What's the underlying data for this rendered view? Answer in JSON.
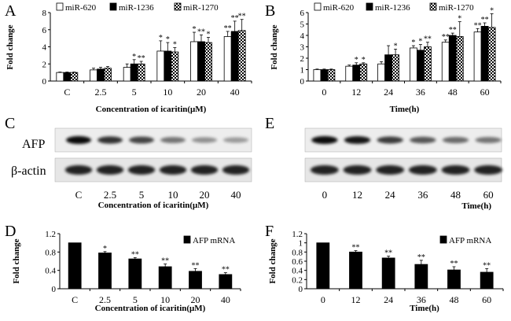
{
  "chart_data": [
    {
      "panel": "A",
      "type": "bar",
      "ylabel": "Fold change",
      "xlabel": "Concentration of icaritin(μM)",
      "categories": [
        "C",
        "2.5",
        "5",
        "10",
        "20",
        "40"
      ],
      "ylim": [
        0,
        8
      ],
      "yticks": [
        0,
        2,
        4,
        6,
        8
      ],
      "legend_position": "top-left",
      "series": [
        {
          "name": "miR-620",
          "pattern": "white",
          "values": [
            1.0,
            1.3,
            1.6,
            3.5,
            4.6,
            5.2
          ],
          "errors": [
            0.05,
            0.2,
            0.4,
            1.2,
            1.1,
            0.6
          ],
          "marks": [
            "",
            "",
            "",
            "*",
            "*",
            "**"
          ]
        },
        {
          "name": "miR-1236",
          "pattern": "black",
          "values": [
            1.0,
            1.4,
            2.0,
            3.5,
            4.6,
            5.8
          ],
          "errors": [
            0.05,
            0.2,
            0.5,
            1.0,
            0.8,
            1.2
          ],
          "marks": [
            "",
            "",
            "*",
            "*",
            "**",
            "**"
          ]
        },
        {
          "name": "miR-1270",
          "pattern": "checker",
          "values": [
            1.0,
            1.5,
            2.0,
            3.4,
            4.5,
            5.9
          ],
          "errors": [
            0.05,
            0.2,
            0.3,
            0.5,
            0.6,
            1.3
          ],
          "marks": [
            "",
            "",
            "**",
            "*",
            "*",
            "**"
          ]
        }
      ]
    },
    {
      "panel": "B",
      "type": "bar",
      "ylabel": "Fold change",
      "xlabel": "Time(h)",
      "categories": [
        "0",
        "12",
        "24",
        "36",
        "48",
        "60"
      ],
      "ylim": [
        0,
        6
      ],
      "yticks": [
        0,
        1,
        2,
        3,
        4,
        5,
        6
      ],
      "legend_position": "top-left",
      "series": [
        {
          "name": "miR-620",
          "pattern": "white",
          "values": [
            1.0,
            1.3,
            1.5,
            2.9,
            3.4,
            4.3
          ],
          "errors": [
            0.05,
            0.1,
            0.2,
            0.2,
            0.2,
            0.3
          ],
          "marks": [
            "",
            "",
            "",
            "*",
            "**",
            "**"
          ]
        },
        {
          "name": "miR-1236",
          "pattern": "black",
          "values": [
            1.0,
            1.4,
            2.3,
            2.7,
            4.0,
            4.8
          ],
          "errors": [
            0.05,
            0.2,
            0.8,
            0.5,
            0.2,
            0.3
          ],
          "marks": [
            "",
            "*",
            "",
            "*",
            "**",
            "**"
          ]
        },
        {
          "name": "miR-1270",
          "pattern": "checker",
          "values": [
            1.0,
            1.5,
            2.3,
            3.0,
            3.9,
            4.7
          ],
          "errors": [
            0.05,
            0.1,
            0.5,
            0.4,
            1.3,
            1.2
          ],
          "marks": [
            "",
            "*",
            "*",
            "**",
            "*",
            "*"
          ]
        }
      ]
    },
    {
      "panel": "D",
      "type": "bar",
      "ylabel": "Fold change",
      "xlabel": "Concentration of icaritin(μM)",
      "categories": [
        "C",
        "2.5",
        "5",
        "10",
        "20",
        "40"
      ],
      "ylim": [
        0,
        1.2
      ],
      "yticks": [
        "0",
        "0.4",
        "0.8",
        "1.2"
      ],
      "legend_position": "top-right",
      "series": [
        {
          "name": "AFP mRNA",
          "pattern": "black",
          "values": [
            1.0,
            0.78,
            0.65,
            0.48,
            0.38,
            0.31
          ],
          "errors": [
            0,
            0.03,
            0.03,
            0.06,
            0.06,
            0.04
          ],
          "marks": [
            "",
            "*",
            "**",
            "**",
            "**",
            "**"
          ]
        }
      ]
    },
    {
      "panel": "F",
      "type": "bar",
      "ylabel": "Fold change",
      "xlabel": "Time(h)",
      "categories": [
        "0",
        "12",
        "24",
        "36",
        "48",
        "60"
      ],
      "ylim": [
        0,
        1.2
      ],
      "yticks": [
        "0",
        "0.2",
        "0.4",
        "0.6",
        "0.8",
        "1",
        "1.2"
      ],
      "legend_position": "top-right",
      "series": [
        {
          "name": "AFP mRNA",
          "pattern": "black",
          "values": [
            1.0,
            0.8,
            0.67,
            0.53,
            0.41,
            0.36
          ],
          "errors": [
            0,
            0.03,
            0.04,
            0.09,
            0.07,
            0.08
          ],
          "marks": [
            "",
            "**",
            "**",
            "**",
            "**",
            "**"
          ]
        }
      ]
    }
  ],
  "blots": {
    "C": {
      "labels": [
        "AFP",
        "β-actin"
      ],
      "lanes": [
        "C",
        "2.5",
        "5",
        "10",
        "20",
        "40"
      ],
      "xlabel": "Concentration of icaritin(μM)",
      "afp_intensity": [
        1.0,
        0.8,
        0.7,
        0.45,
        0.3,
        0.25
      ],
      "actin_intensity": [
        1,
        1,
        1,
        1,
        1,
        1
      ]
    },
    "E": {
      "lanes": [
        "0",
        "12",
        "24",
        "36",
        "48",
        "60"
      ],
      "xlabel": "Time(h)",
      "afp_intensity": [
        1.0,
        0.95,
        0.75,
        0.6,
        0.5,
        0.45
      ],
      "actin_intensity": [
        1,
        1,
        1,
        1,
        1,
        1
      ]
    }
  },
  "panel_letters": {
    "A": "A",
    "B": "B",
    "C": "C",
    "D": "D",
    "E": "E",
    "F": "F"
  }
}
